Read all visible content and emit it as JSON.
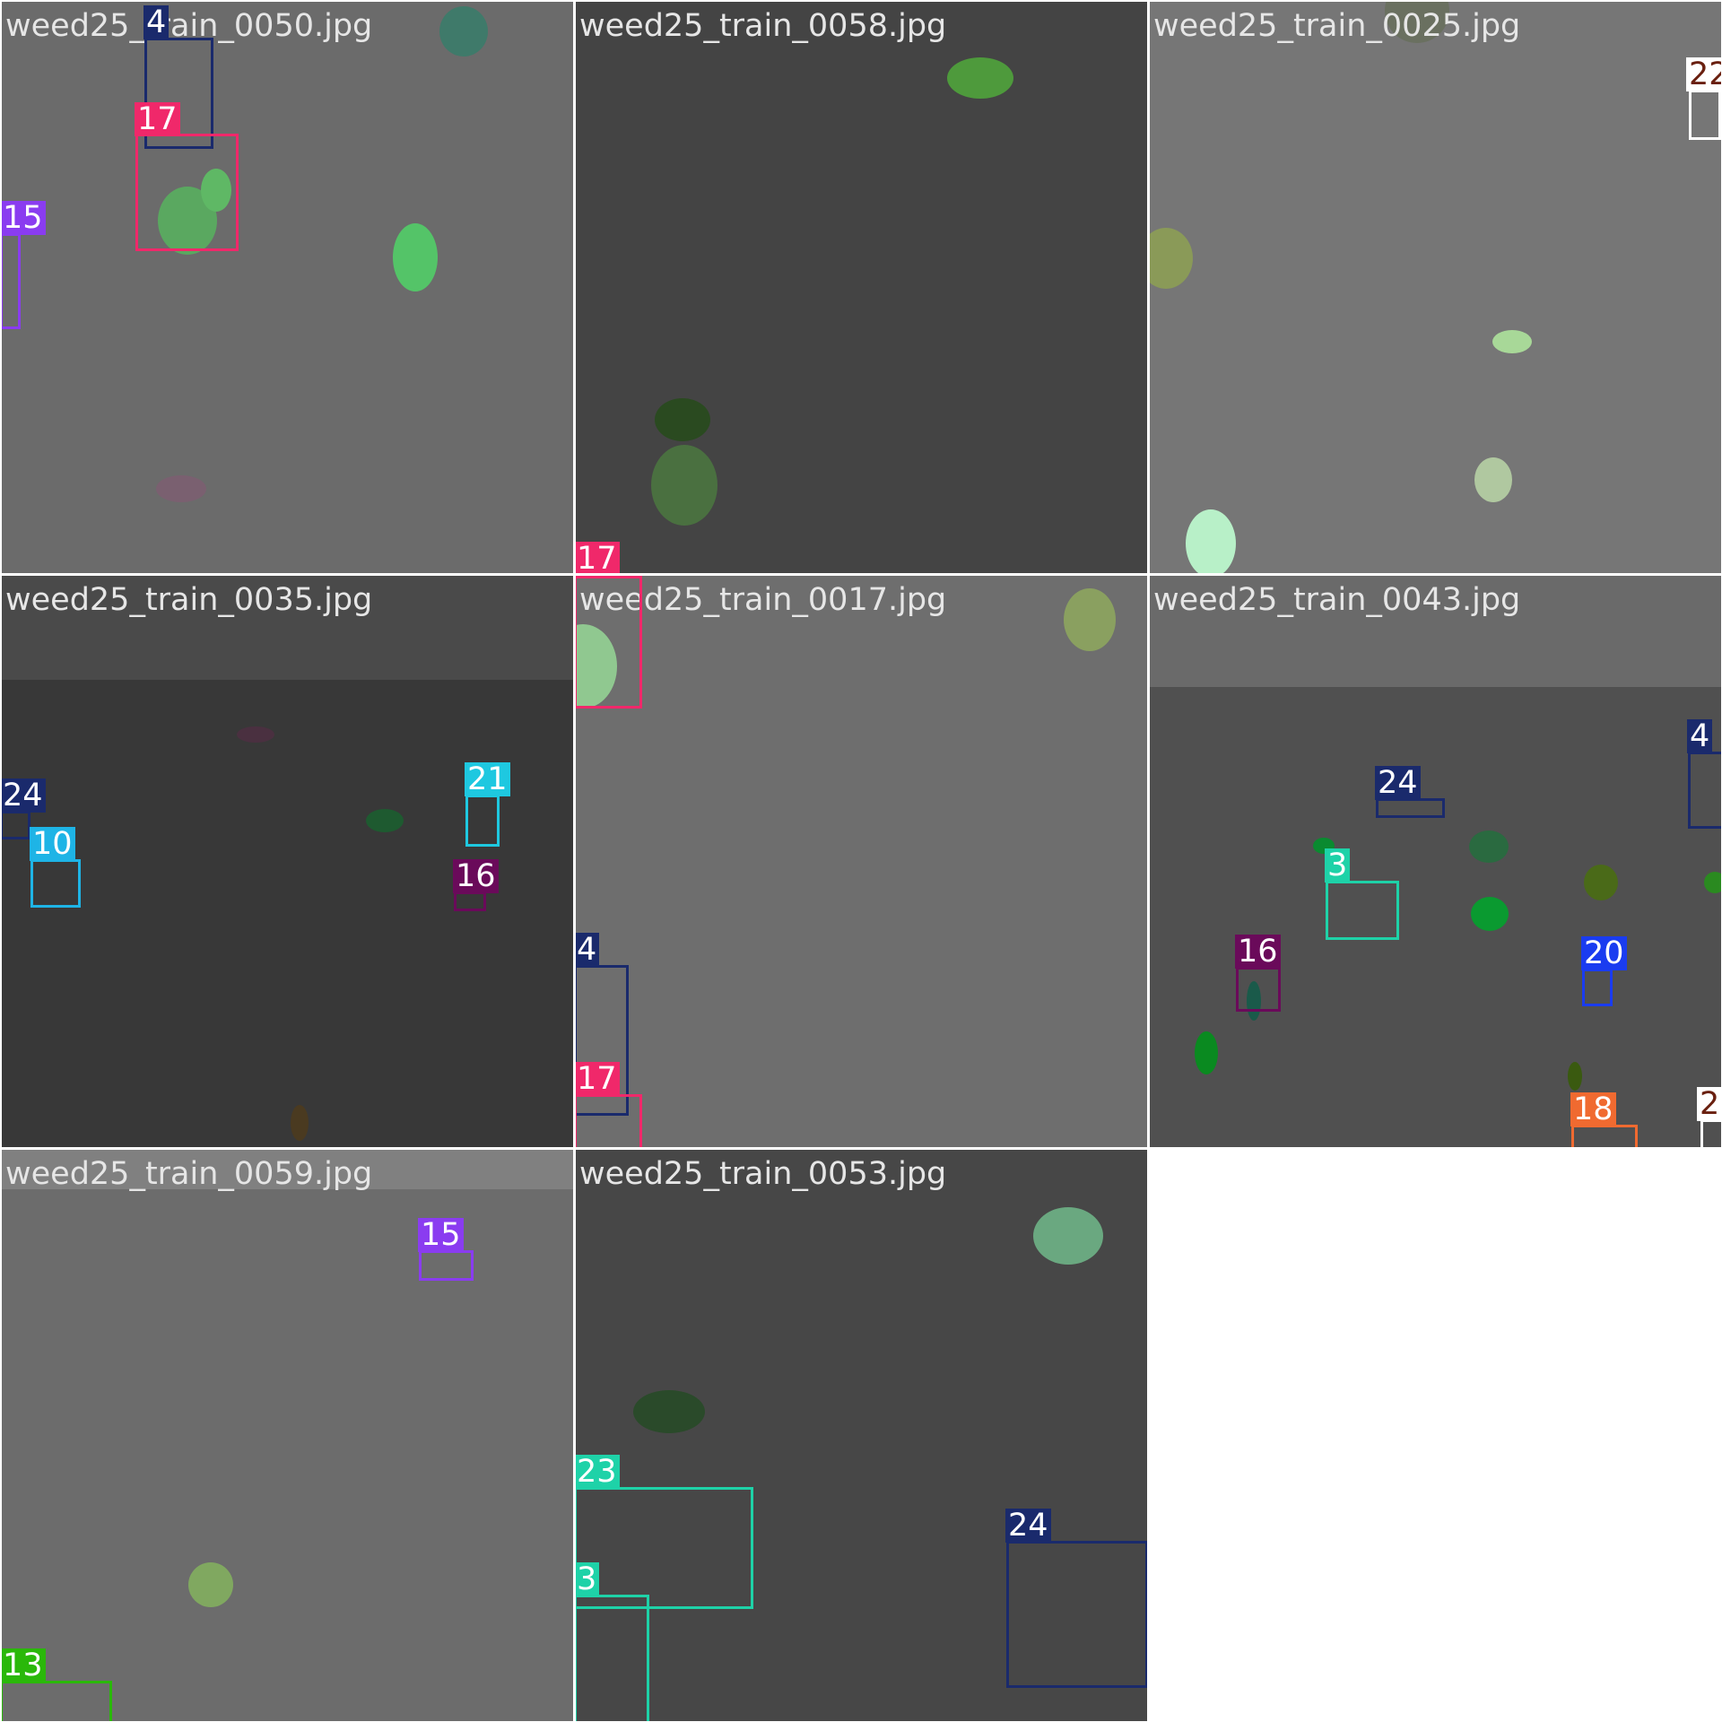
{
  "tiles": [
    {
      "title": "weed25_train_0050.jpg",
      "bg": "#6b6b6b",
      "blobs": [
        {
          "color": "#3f7a6a"
        },
        {
          "color": "#5aa860"
        },
        {
          "color": "#5fb865"
        },
        {
          "color": "#54c468"
        },
        {
          "color": "#7a6070"
        }
      ],
      "boxes": [
        {
          "label": "4",
          "color": "#1a2a6c"
        },
        {
          "label": "17",
          "color": "#f0286a"
        },
        {
          "label": "15",
          "color": "#8a3cf0"
        }
      ]
    },
    {
      "title": "weed25_train_0058.jpg",
      "bg": "#444444",
      "blobs": [
        {
          "color": "#4e9a3c"
        },
        {
          "color": "#2a4a20"
        },
        {
          "color": "#4a7040"
        }
      ],
      "boxes": [
        {
          "label": "17",
          "color": "#f0286a"
        }
      ]
    },
    {
      "title": "weed25_train_0025.jpg",
      "bg": "#767676",
      "blobs": [
        {
          "color": "#6a7060"
        },
        {
          "color": "#8a9a58"
        },
        {
          "color": "#a8d898"
        },
        {
          "color": "#b0c8a0"
        },
        {
          "color": "#b8f0c8"
        }
      ],
      "boxes": [
        {
          "label": "22",
          "color": "#ffffff",
          "text": "#6a2010"
        }
      ]
    },
    {
      "title": "weed25_train_0035.jpg",
      "bg": "#383838",
      "band": "#4a4a4a",
      "blobs": [
        {
          "color": "#1e5a30"
        },
        {
          "color": "#4a3040"
        },
        {
          "color": "#4a3a20"
        }
      ],
      "boxes": [
        {
          "label": "24",
          "color": "#1a2a6c"
        },
        {
          "label": "10",
          "color": "#1eb4e6"
        },
        {
          "label": "21",
          "color": "#1ec8e0"
        },
        {
          "label": "16",
          "color": "#6a0a5a"
        }
      ]
    },
    {
      "title": "weed25_train_0017.jpg",
      "bg": "#6e6e6e",
      "blobs": [
        {
          "color": "#90c890"
        },
        {
          "color": "#8aa060"
        }
      ],
      "boxes": [
        {
          "label": "17",
          "color": "#f0286a"
        },
        {
          "label": "4",
          "color": "#1a2a6c"
        },
        {
          "label": "17",
          "color": "#f0286a"
        }
      ]
    },
    {
      "title": "weed25_train_0043.jpg",
      "bg": "#505050",
      "band": "#6a6a6a",
      "blobs": [
        {
          "color": "#0a8a30"
        },
        {
          "color": "#2a6a40"
        },
        {
          "color": "#0a9a30"
        },
        {
          "color": "#4a6a18"
        },
        {
          "color": "#2a8a20"
        },
        {
          "color": "#0a8a20"
        },
        {
          "color": "#1a5a4a"
        },
        {
          "color": "#3a5a10"
        }
      ],
      "boxes": [
        {
          "label": "24",
          "color": "#1a2a6c"
        },
        {
          "label": "4",
          "color": "#1a2a6c"
        },
        {
          "label": "3",
          "color": "#1ed2a8"
        },
        {
          "label": "16",
          "color": "#6a0a5a"
        },
        {
          "label": "20",
          "color": "#1a3cf0"
        },
        {
          "label": "18",
          "color": "#f06a30"
        },
        {
          "label": "2",
          "color": "#ffffff",
          "text": "#6a2010"
        }
      ]
    },
    {
      "title": "weed25_train_0059.jpg",
      "bg": "#6c6c6c",
      "band": "#808080",
      "blobs": [
        {
          "color": "#80a860"
        }
      ],
      "boxes": [
        {
          "label": "15",
          "color": "#8a3cf0"
        },
        {
          "label": "13",
          "color": "#2ab80a"
        }
      ]
    },
    {
      "title": "weed25_train_0053.jpg",
      "bg": "#474747",
      "blobs": [
        {
          "color": "#6aa880"
        },
        {
          "color": "#2a4a2a"
        }
      ],
      "boxes": [
        {
          "label": "23",
          "color": "#1ed2a8"
        },
        {
          "label": "3",
          "color": "#1ed2a8"
        },
        {
          "label": "24",
          "color": "#1a2a6c"
        }
      ]
    }
  ]
}
